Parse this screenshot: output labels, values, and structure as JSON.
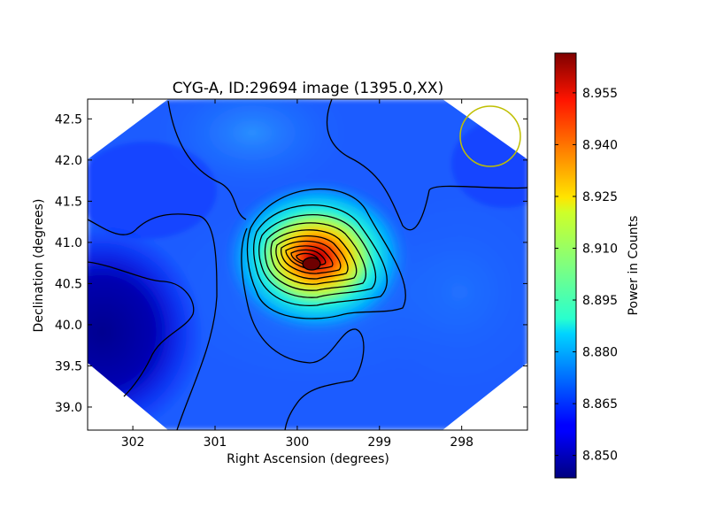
{
  "chart_data": {
    "type": "heatmap",
    "title": "CYG-A, ID:29694 image (1395.0,XX)",
    "xlabel": "Right Ascension (degrees)",
    "ylabel": "Declination (degrees)",
    "xlim": [
      302.55,
      297.2
    ],
    "ylim": [
      38.72,
      42.74
    ],
    "x_ticks": [
      302,
      301,
      300,
      299,
      298
    ],
    "x_tick_labels": [
      "302",
      "301",
      "300",
      "299",
      "298"
    ],
    "y_ticks": [
      39.0,
      39.5,
      40.0,
      40.5,
      41.0,
      41.5,
      42.0,
      42.5
    ],
    "y_tick_labels": [
      "39.0",
      "39.5",
      "40.0",
      "40.5",
      "41.0",
      "41.5",
      "42.0",
      "42.5"
    ],
    "peak": {
      "ra": 299.8,
      "dec": 40.73,
      "value": 8.964
    },
    "beam_circle": {
      "ra": 297.65,
      "dec": 42.28,
      "radius_deg": 0.37,
      "color": "#bfbf00"
    },
    "colorbar": {
      "label": "Power in Counts",
      "min": 8.8435,
      "max": 8.9665,
      "ticks": [
        8.85,
        8.865,
        8.88,
        8.895,
        8.91,
        8.925,
        8.94,
        8.955
      ],
      "tick_labels": [
        "8.850",
        "8.865",
        "8.880",
        "8.895",
        "8.910",
        "8.925",
        "8.940",
        "8.955"
      ],
      "colormap": "jet"
    },
    "grid": false,
    "contour_color": "#000000"
  }
}
